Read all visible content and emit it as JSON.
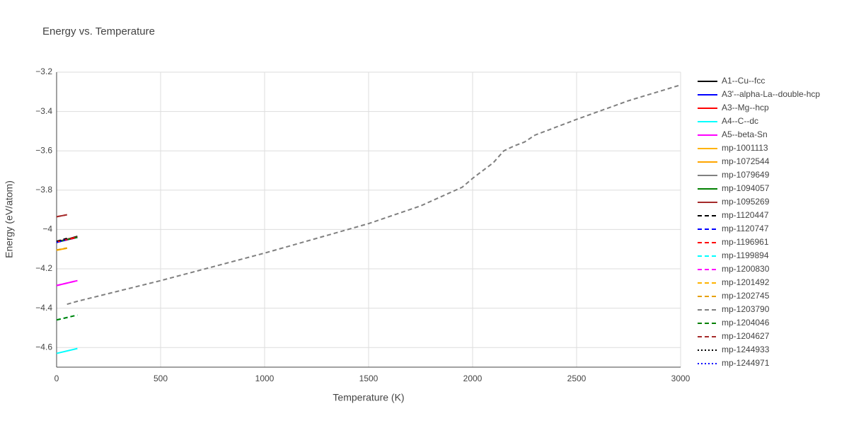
{
  "chart_data": {
    "type": "line",
    "title": "Energy vs. Temperature",
    "x_label": "Temperature (K)",
    "y_label": "Energy (eV/atom)",
    "xlim": [
      0,
      3000
    ],
    "xticks": [
      0,
      500,
      1000,
      1500,
      2000,
      2500,
      3000
    ],
    "ylim": [
      -4.7,
      -3.2
    ],
    "yticks": [
      {
        "value": -4.6,
        "label": "−4.6"
      },
      {
        "value": -4.4,
        "label": "−4.4"
      },
      {
        "value": -4.2,
        "label": "−4.2"
      },
      {
        "value": -4,
        "label": "−4"
      },
      {
        "value": -3.8,
        "label": "−3.8"
      },
      {
        "value": -3.6,
        "label": "−3.6"
      },
      {
        "value": -3.4,
        "label": "−3.4"
      },
      {
        "value": -3.2,
        "label": "−3.2"
      }
    ],
    "grid": true,
    "legend": "right",
    "series": [
      {
        "name": "A1--Cu--fcc",
        "color": "#000000",
        "dash": "solid",
        "x": [
          0,
          100
        ],
        "values": [
          -4.065,
          -4.035
        ]
      },
      {
        "name": "A3'--alpha-La--double-hcp",
        "color": "#0000ff",
        "dash": "solid",
        "x": [
          0,
          100
        ],
        "values": [
          -4.065,
          -4.04
        ]
      },
      {
        "name": "A3--Mg--hcp",
        "color": "#ff0000",
        "dash": "solid",
        "x": [
          0,
          100
        ],
        "values": [
          -4.062,
          -4.038
        ]
      },
      {
        "name": "A4--C--dc",
        "color": "#00ffff",
        "dash": "solid",
        "x": [
          0,
          100
        ],
        "values": [
          -4.63,
          -4.605
        ]
      },
      {
        "name": "A5--beta-Sn",
        "color": "#ff00ff",
        "dash": "solid",
        "x": [
          0,
          100
        ],
        "values": [
          -4.285,
          -4.26
        ]
      },
      {
        "name": "mp-1001113",
        "color": "#ffb300",
        "dash": "solid",
        "x": [
          0,
          50
        ],
        "values": [
          -4.105,
          -4.095
        ]
      },
      {
        "name": "mp-1072544",
        "color": "#ffa500",
        "dash": "solid",
        "x": [
          0,
          50
        ],
        "values": [
          -4.105,
          -4.095
        ]
      },
      {
        "name": "mp-1079649",
        "color": "#808080",
        "dash": "solid",
        "x": [
          0,
          100
        ],
        "values": [
          -4.062,
          -4.04
        ]
      },
      {
        "name": "mp-1094057",
        "color": "#008000",
        "dash": "solid",
        "x": [
          0,
          100
        ],
        "values": [
          -4.064,
          -4.04
        ]
      },
      {
        "name": "mp-1095269",
        "color": "#a52a2a",
        "dash": "solid",
        "x": [
          0,
          50
        ],
        "values": [
          -3.935,
          -3.925
        ]
      },
      {
        "name": "mp-1120447",
        "color": "#000000",
        "dash": "dash",
        "x": [
          0,
          50
        ],
        "values": [
          -4.06,
          -4.045
        ]
      },
      {
        "name": "mp-1120747",
        "color": "#0000ff",
        "dash": "dash",
        "x": [
          0,
          100
        ],
        "values": [
          -4.065,
          -4.04
        ]
      },
      {
        "name": "mp-1196961",
        "color": "#ff0000",
        "dash": "dash",
        "x": [
          0,
          100
        ],
        "values": [
          -4.063,
          -4.04
        ]
      },
      {
        "name": "mp-1199894",
        "color": "#00ffff",
        "dash": "dash",
        "x": [
          0,
          100
        ],
        "values": [
          -4.46,
          -4.435
        ]
      },
      {
        "name": "mp-1200830",
        "color": "#ff00ff",
        "dash": "dash",
        "x": [
          0,
          100
        ],
        "values": [
          -4.285,
          -4.26
        ]
      },
      {
        "name": "mp-1201492",
        "color": "#ffb300",
        "dash": "dash",
        "x": [
          0,
          50
        ],
        "values": [
          -4.105,
          -4.095
        ]
      },
      {
        "name": "mp-1202745",
        "color": "#e6a000",
        "dash": "dash",
        "x": [
          0,
          50
        ],
        "values": [
          -4.104,
          -4.094
        ]
      },
      {
        "name": "mp-1203790",
        "color": "#808080",
        "dash": "dash",
        "x": [
          50,
          100,
          500,
          1000,
          1500,
          1750,
          1950,
          2000,
          2100,
          2150,
          2200,
          2250,
          2300,
          2500,
          2750,
          3000
        ],
        "values": [
          -4.38,
          -4.365,
          -4.26,
          -4.12,
          -3.97,
          -3.88,
          -3.785,
          -3.74,
          -3.66,
          -3.6,
          -3.575,
          -3.555,
          -3.52,
          -3.44,
          -3.345,
          -3.265
        ]
      },
      {
        "name": "mp-1204046",
        "color": "#008000",
        "dash": "dash",
        "x": [
          0,
          100
        ],
        "values": [
          -4.46,
          -4.435
        ]
      },
      {
        "name": "mp-1204627",
        "color": "#a52a2a",
        "dash": "dash",
        "x": [
          0,
          50
        ],
        "values": [
          -3.935,
          -3.925
        ]
      },
      {
        "name": "mp-1244933",
        "color": "#000000",
        "dash": "dot",
        "x": [
          0,
          50
        ],
        "values": [
          -4.062,
          -4.048
        ]
      },
      {
        "name": "mp-1244971",
        "color": "#0000ff",
        "dash": "dot",
        "x": [
          0,
          50
        ],
        "values": [
          -4.066,
          -4.05
        ]
      }
    ]
  }
}
